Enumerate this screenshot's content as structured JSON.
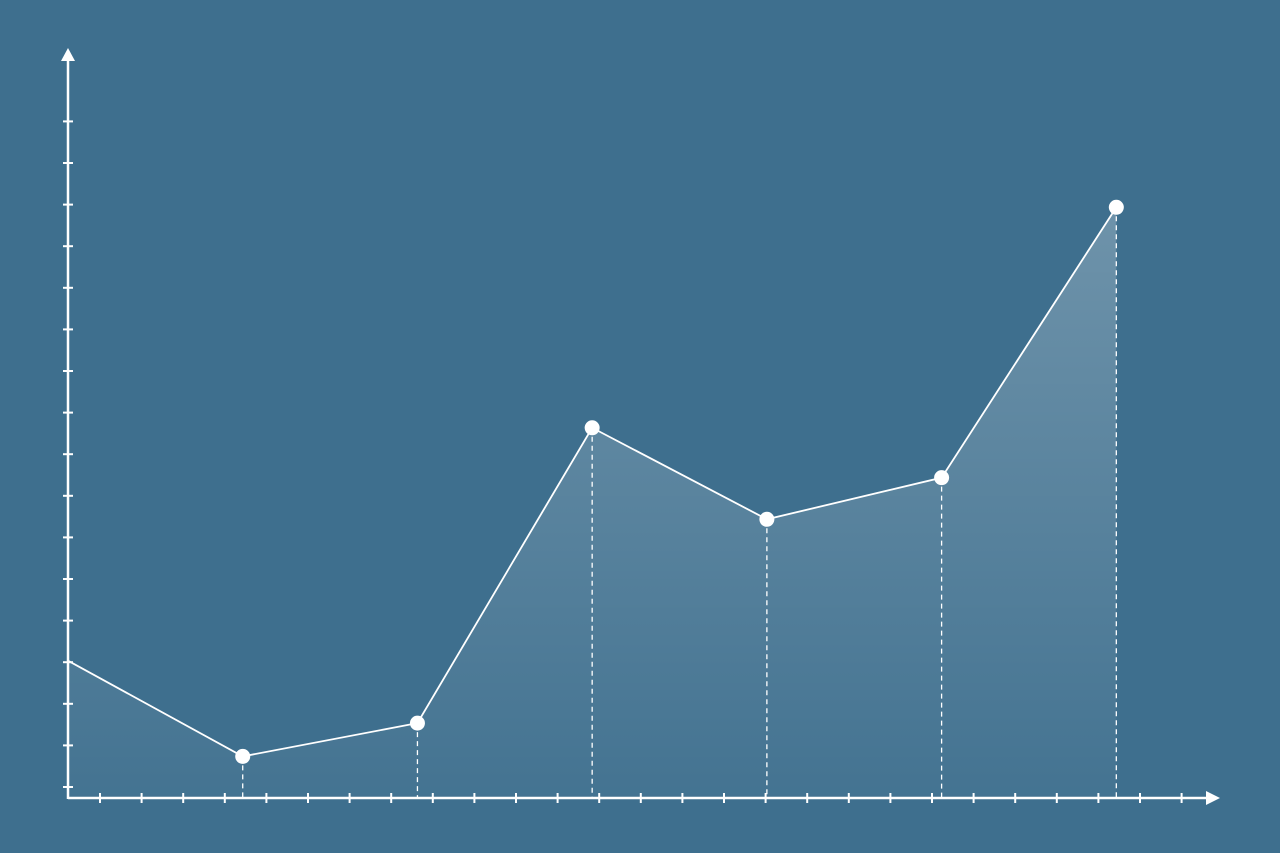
{
  "chart_data": {
    "type": "area",
    "title": "",
    "xlabel": "",
    "ylabel": "",
    "x": [
      0,
      4.2,
      8.4,
      12.6,
      16.8,
      21.0,
      25.2
    ],
    "series": [
      {
        "values": [
          3.3,
          1.0,
          1.8,
          8.9,
          6.7,
          7.7,
          14.2
        ]
      }
    ],
    "xlim": [
      0,
      27.5
    ],
    "ylim": [
      0,
      18
    ],
    "x_ticks": 27,
    "y_ticks": 17,
    "grid": false,
    "markers": true,
    "drop_lines": "dashed",
    "colors": {
      "background": "#3e6f8e",
      "line": "#ffffff",
      "fill": "#ffffff"
    }
  }
}
